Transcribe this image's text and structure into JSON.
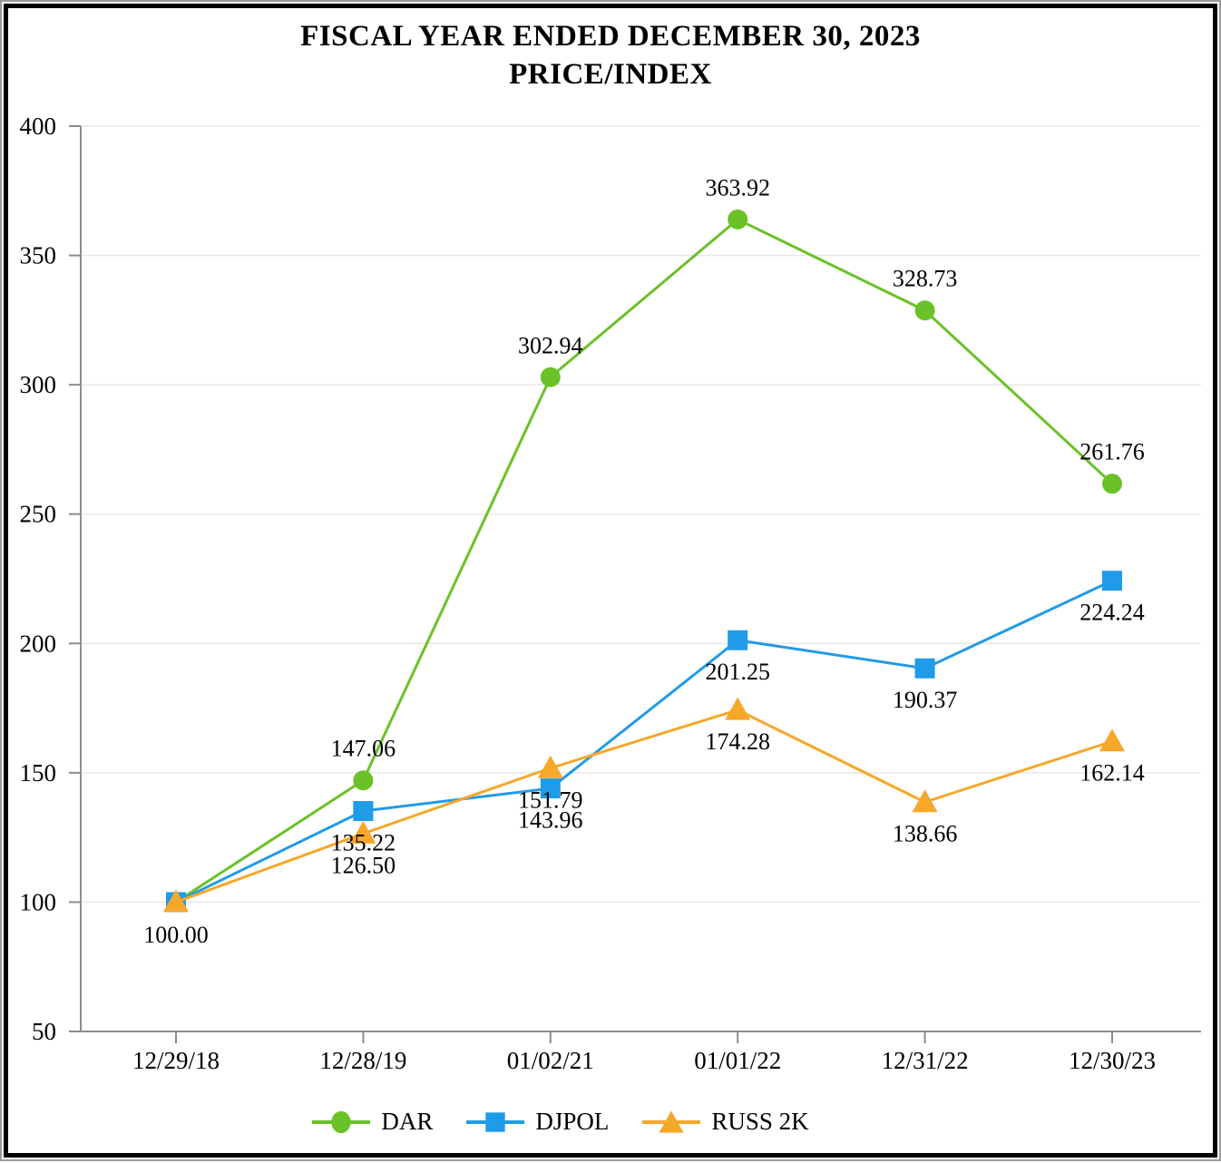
{
  "chart_data": {
    "type": "line",
    "title": "FISCAL YEAR ENDED DECEMBER 30, 2023",
    "subtitle": "PRICE/INDEX",
    "x_labels": [
      "12/29/18",
      "12/28/19",
      "01/02/21",
      "01/01/22",
      "12/31/22",
      "12/30/23"
    ],
    "y_ticks": [
      50,
      100,
      150,
      200,
      250,
      300,
      350,
      400
    ],
    "ylim": [
      50,
      400
    ],
    "grid": "horizontal-light",
    "legend_position": "bottom",
    "point_label_decimals": 2,
    "axis_color": "#8c8c8c",
    "gridline_color": "#e8e8e8",
    "series": [
      {
        "name": "DAR",
        "marker": "circle",
        "color": "#6AC228",
        "values": [
          100.0,
          147.06,
          302.94,
          363.92,
          328.73,
          261.76
        ]
      },
      {
        "name": "DJPOL",
        "marker": "square",
        "color": "#209BE8",
        "values": [
          100.0,
          135.22,
          143.96,
          201.25,
          190.37,
          224.24
        ]
      },
      {
        "name": "RUSS 2K",
        "marker": "triangle",
        "color": "#F7A72A",
        "values": [
          100.0,
          126.5,
          151.79,
          174.28,
          138.66,
          162.14
        ]
      }
    ]
  }
}
